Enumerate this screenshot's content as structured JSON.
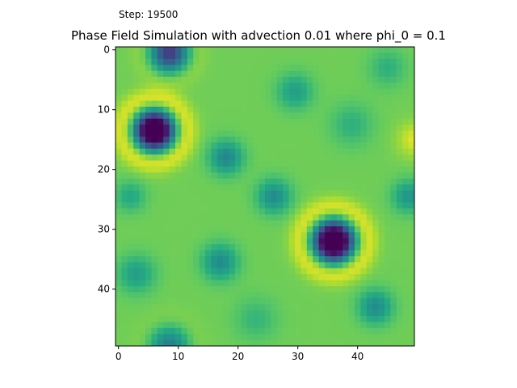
{
  "step_label": "Step: 19500",
  "chart_data": {
    "type": "heatmap",
    "title": "Phase Field Simulation with advection 0.01 where phi_0 = 0.1",
    "xlabel": "",
    "ylabel": "",
    "grid_size": [
      50,
      50
    ],
    "xlim": [
      -0.5,
      49.5
    ],
    "ylim": [
      49.5,
      -0.5
    ],
    "x_ticks": [
      0,
      10,
      20,
      30,
      40
    ],
    "y_ticks": [
      0,
      10,
      20,
      30,
      40
    ],
    "colormap": "viridis",
    "baseline_value": 0.78,
    "features": [
      {
        "kind": "dark_spot",
        "x": 6,
        "y": 13.5,
        "depth": 1.0,
        "sigma": 2.5,
        "ring": 0.25,
        "ring_radius": 5.2
      },
      {
        "kind": "dark_spot",
        "x": 36,
        "y": 32,
        "depth": 1.0,
        "sigma": 2.6,
        "ring": 0.25,
        "ring_radius": 5.4
      },
      {
        "kind": "dark_spot",
        "x": 8.5,
        "y": 0.5,
        "depth": 0.6,
        "sigma": 2.4,
        "ring": 0.1,
        "ring_radius": 4.5
      },
      {
        "kind": "dark_spot",
        "x": 8.5,
        "y": 49.5,
        "depth": 0.35,
        "sigma": 2.4,
        "ring": 0.05,
        "ring_radius": 4.5
      },
      {
        "kind": "soft_spot",
        "x": 18,
        "y": 18,
        "depth": 0.32,
        "sigma": 2.0
      },
      {
        "kind": "soft_spot",
        "x": 26,
        "y": 24.5,
        "depth": 0.3,
        "sigma": 2.0
      },
      {
        "kind": "soft_spot",
        "x": 17,
        "y": 35.5,
        "depth": 0.3,
        "sigma": 2.1
      },
      {
        "kind": "soft_spot",
        "x": 29.5,
        "y": 7,
        "depth": 0.22,
        "sigma": 2.1
      },
      {
        "kind": "soft_spot",
        "x": 43,
        "y": 43,
        "depth": 0.3,
        "sigma": 2.0
      },
      {
        "kind": "soft_spot",
        "x": 48.5,
        "y": 24.5,
        "depth": 0.26,
        "sigma": 1.9
      },
      {
        "kind": "soft_spot",
        "x": 3,
        "y": 37.5,
        "depth": 0.22,
        "sigma": 2.2
      },
      {
        "kind": "soft_spot",
        "x": 39,
        "y": 12.5,
        "depth": 0.14,
        "sigma": 2.5
      },
      {
        "kind": "soft_spot",
        "x": 45,
        "y": 3,
        "depth": 0.14,
        "sigma": 2.2
      },
      {
        "kind": "soft_spot",
        "x": 23,
        "y": 45,
        "depth": 0.12,
        "sigma": 2.5
      },
      {
        "kind": "soft_spot",
        "x": 2,
        "y": 24.5,
        "depth": 0.18,
        "sigma": 1.8
      },
      {
        "kind": "bright_spot",
        "x": 49.5,
        "y": 15,
        "height": 0.18,
        "sigma": 2.0
      }
    ]
  }
}
